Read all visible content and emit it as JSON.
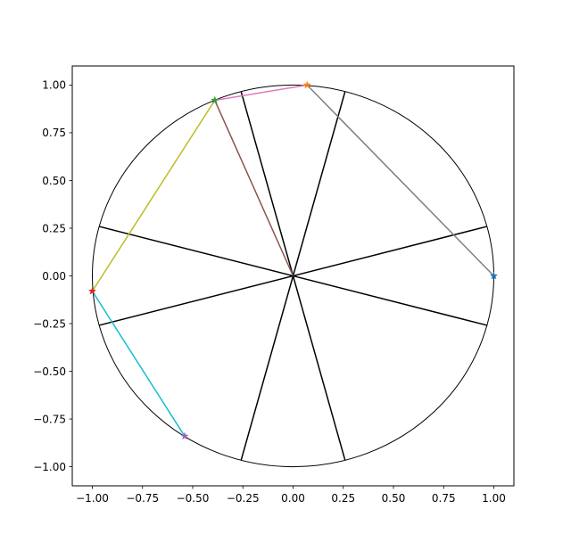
{
  "chart_data": {
    "type": "line",
    "title": "",
    "xlabel": "",
    "ylabel": "",
    "xlim": [
      -1.1,
      1.1
    ],
    "ylim": [
      -1.1,
      1.1
    ],
    "grid": false,
    "x_ticks": [
      "−1.00",
      "−0.75",
      "−0.50",
      "−0.25",
      "0.00",
      "0.25",
      "0.50",
      "0.75",
      "1.00"
    ],
    "y_ticks": [
      "1.00",
      "0.75",
      "0.50",
      "0.25",
      "0.00",
      "−0.25",
      "−0.50",
      "−0.75",
      "−1.00"
    ],
    "x_tick_values": [
      -1.0,
      -0.75,
      -0.5,
      -0.25,
      0.0,
      0.25,
      0.5,
      0.75,
      1.0
    ],
    "y_tick_values": [
      1.0,
      0.75,
      0.5,
      0.25,
      0.0,
      -0.25,
      -0.5,
      -0.75,
      -1.0
    ],
    "circle": {
      "center": [
        0,
        0
      ],
      "radius": 1.0,
      "color": "#000000"
    },
    "diameters": [
      {
        "from": [
          -0.259,
          -0.966
        ],
        "to": [
          0.259,
          0.966
        ]
      },
      {
        "from": [
          -0.966,
          -0.259
        ],
        "to": [
          0.966,
          0.259
        ]
      },
      {
        "from": [
          -0.966,
          0.259
        ],
        "to": [
          0.966,
          -0.259
        ]
      },
      {
        "from": [
          -0.259,
          0.966
        ],
        "to": [
          0.259,
          -0.966
        ]
      }
    ],
    "points": [
      {
        "x": 1.0,
        "y": 0.0,
        "color": "#1f77b4"
      },
      {
        "x": 0.07,
        "y": 1.0,
        "color": "#ff7f0e"
      },
      {
        "x": -0.39,
        "y": 0.92,
        "color": "#2ca02c"
      },
      {
        "x": -1.0,
        "y": -0.08,
        "color": "#d62728"
      },
      {
        "x": -0.54,
        "y": -0.84,
        "color": "#9467bd"
      }
    ],
    "segments": [
      {
        "from": [
          -0.39,
          0.92
        ],
        "to": [
          0.0,
          0.0
        ],
        "color": "#8c564b"
      },
      {
        "from": [
          -0.39,
          0.92
        ],
        "to": [
          0.07,
          1.0
        ],
        "color": "#e377c2"
      },
      {
        "from": [
          0.07,
          1.0
        ],
        "to": [
          1.0,
          0.0
        ],
        "color": "#7f7f7f"
      },
      {
        "from": [
          -0.39,
          0.92
        ],
        "to": [
          -1.0,
          -0.08
        ],
        "color": "#bcbd22"
      },
      {
        "from": [
          -1.0,
          -0.08
        ],
        "to": [
          -0.54,
          -0.84
        ],
        "color": "#17becf"
      }
    ]
  }
}
